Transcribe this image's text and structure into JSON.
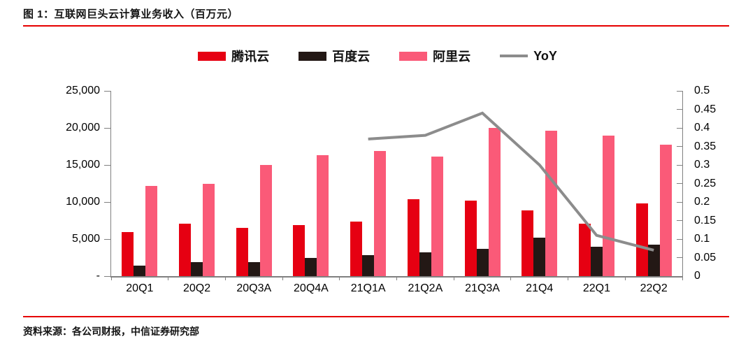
{
  "figure": {
    "title": "图 1：互联网巨头云计算业务收入（百万元）",
    "source": "资料来源：各公司财报，中信证券研究部"
  },
  "colors": {
    "tencent_red": "#e60012",
    "baidu_dark": "#231815",
    "ali_pink": "#fa5a78",
    "yoy_gray": "#8c8c8c",
    "rule_red": "#e60000",
    "axis_gray": "#808080"
  },
  "chart_data": {
    "type": "bar",
    "subtype": "grouped bars with secondary-axis line",
    "title": "互联网巨头云计算业务收入（百万元）",
    "categories": [
      "20Q1",
      "20Q2",
      "20Q3A",
      "20Q4A",
      "21Q1A",
      "21Q2A",
      "21Q3A",
      "21Q4",
      "22Q1",
      "22Q2"
    ],
    "series": [
      {
        "name": "腾讯云",
        "key": "tencent-cloud",
        "type": "bar",
        "axis": "left",
        "color": "#e60012",
        "values": [
          5900,
          7100,
          6500,
          6900,
          7350,
          10400,
          10150,
          8900,
          7100,
          9850
        ]
      },
      {
        "name": "百度云",
        "key": "baidu-cloud",
        "type": "bar",
        "axis": "left",
        "color": "#231815",
        "values": [
          1450,
          1900,
          1900,
          2500,
          2800,
          3250,
          3650,
          5150,
          3950,
          4250
        ]
      },
      {
        "name": "阿里云",
        "key": "ali-cloud",
        "type": "bar",
        "axis": "left",
        "color": "#fa5a78",
        "values": [
          12200,
          12450,
          15000,
          16300,
          16900,
          16100,
          20000,
          19600,
          19000,
          17700
        ]
      },
      {
        "name": "YoY",
        "key": "yoy",
        "type": "line",
        "axis": "right",
        "color": "#8c8c8c",
        "values": [
          null,
          null,
          null,
          null,
          0.37,
          0.38,
          0.44,
          0.3,
          0.11,
          0.07
        ]
      }
    ],
    "left_axis": {
      "min": 0,
      "max": 25000,
      "step": 5000,
      "tick_labels": [
        "-",
        "5,000",
        "10,000",
        "15,000",
        "20,000",
        "25,000"
      ]
    },
    "right_axis": {
      "min": 0,
      "max": 0.5,
      "step": 0.05,
      "tick_labels": [
        "0",
        "0.05",
        "0.1",
        "0.15",
        "0.2",
        "0.25",
        "0.3",
        "0.35",
        "0.4",
        "0.45",
        "0.5"
      ]
    },
    "legend_position": "top-center",
    "grid": false
  }
}
